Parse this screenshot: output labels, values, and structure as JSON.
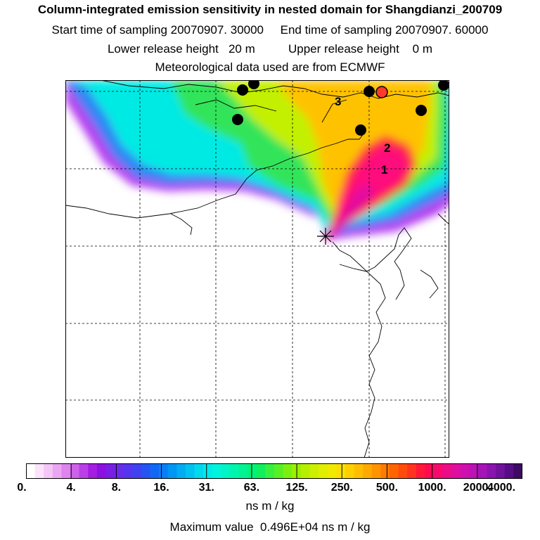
{
  "header": {
    "title": "Column-integrated emission sensitivity in nested domain for Shangdianzi_200709",
    "sampling_line": "Start time of sampling 20070907. 30000     End time of sampling 20070907. 60000",
    "release_line": "Lower release height   20 m          Upper release height    0 m",
    "met_line": "Meteorological data used are from ECMWF"
  },
  "map": {
    "markers": [
      {
        "label": "3"
      },
      {
        "label": "2"
      },
      {
        "label": "1"
      }
    ]
  },
  "colorbar": {
    "tick_labels": [
      "0.",
      "4.",
      "8.",
      "16.",
      "31.",
      "63.",
      "125.",
      "250.",
      "500.",
      "1000.",
      "2000.",
      "4000."
    ],
    "units": "ns m / kg",
    "colors": [
      "#ffffff",
      "#fbe3fb",
      "#f4c6f6",
      "#eaa6f2",
      "#de84ee",
      "#cf62ea",
      "#bb3fe6",
      "#a41ee2",
      "#8c10e0",
      "#7a1ee6",
      "#6a2cec",
      "#5535ee",
      "#3f42f0",
      "#2654f2",
      "#1168f4",
      "#0a7ef4",
      "#0096f4",
      "#00acf2",
      "#00c2f0",
      "#00d8ee",
      "#00eaea",
      "#00f4dd",
      "#00f4c6",
      "#00f4ad",
      "#00f493",
      "#00f278",
      "#10f05c",
      "#36f040",
      "#58f024",
      "#7af010",
      "#9cf000",
      "#b6f000",
      "#ccf000",
      "#e0ee00",
      "#f0ea00",
      "#fae000",
      "#ffd000",
      "#ffbe00",
      "#ffaa00",
      "#ff9400",
      "#ff7c00",
      "#ff6400",
      "#ff4c0c",
      "#ff3420",
      "#ff1838",
      "#ff0a52",
      "#f70a6e",
      "#ec0c88",
      "#e00e9e",
      "#d010ae",
      "#bc12b6",
      "#a414b6",
      "#8a14ae",
      "#70129c",
      "#560e84",
      "#3e0a64"
    ]
  },
  "footer": {
    "max_value_line": "Maximum value  0.496E+04 ns m / kg"
  }
}
